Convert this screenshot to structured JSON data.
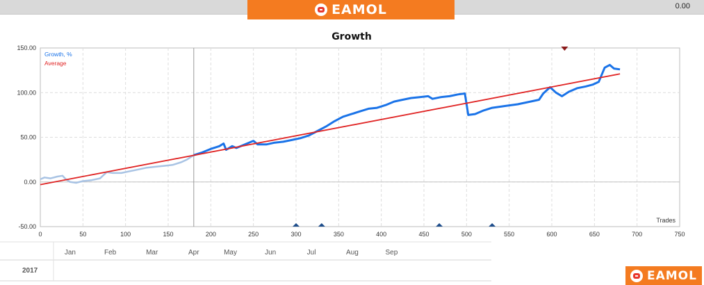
{
  "header": {
    "value": "0.00",
    "brand": "EAMOL"
  },
  "footer": {
    "brand": "EAMOL",
    "year": "2017"
  },
  "chart_data": {
    "type": "line",
    "title": "Growth",
    "xlabel": "Trades",
    "ylabel": "",
    "xlim": [
      0,
      750
    ],
    "ylim": [
      -50,
      150
    ],
    "xticks": [
      0,
      50,
      100,
      150,
      200,
      250,
      300,
      350,
      400,
      450,
      500,
      550,
      600,
      650,
      700,
      750
    ],
    "yticks": [
      -50,
      0,
      50,
      100,
      150
    ],
    "ytick_labels": [
      "-50.00",
      "0.00",
      "50.00",
      "100.00",
      "150.00"
    ],
    "grid": true,
    "legend_position": "top-left",
    "divider_x": 180,
    "months": [
      {
        "label": "Jan",
        "x": 35
      },
      {
        "label": "Feb",
        "x": 82
      },
      {
        "label": "Mar",
        "x": 131
      },
      {
        "label": "Apr",
        "x": 180
      },
      {
        "label": "May",
        "x": 223
      },
      {
        "label": "Jun",
        "x": 270
      },
      {
        "label": "Jul",
        "x": 318
      },
      {
        "label": "Aug",
        "x": 366
      },
      {
        "label": "Sep",
        "x": 412
      }
    ],
    "series": [
      {
        "name": "Growth, %",
        "color": "#1a73e8",
        "faded_before_x": 180,
        "faded_color": "#a8c3e4",
        "points": [
          [
            0,
            3
          ],
          [
            5,
            5
          ],
          [
            12,
            4
          ],
          [
            20,
            6
          ],
          [
            26,
            7
          ],
          [
            30,
            3
          ],
          [
            35,
            0
          ],
          [
            42,
            -1
          ],
          [
            50,
            1
          ],
          [
            60,
            2
          ],
          [
            70,
            4
          ],
          [
            78,
            11
          ],
          [
            85,
            10
          ],
          [
            95,
            10
          ],
          [
            105,
            12
          ],
          [
            115,
            14
          ],
          [
            125,
            16
          ],
          [
            135,
            17
          ],
          [
            145,
            18
          ],
          [
            155,
            19
          ],
          [
            165,
            22
          ],
          [
            172,
            25
          ],
          [
            180,
            30
          ],
          [
            190,
            33
          ],
          [
            200,
            37
          ],
          [
            210,
            40
          ],
          [
            215,
            43
          ],
          [
            218,
            36
          ],
          [
            225,
            40
          ],
          [
            230,
            38
          ],
          [
            240,
            42
          ],
          [
            250,
            46
          ],
          [
            255,
            42
          ],
          [
            265,
            42
          ],
          [
            275,
            44
          ],
          [
            285,
            45
          ],
          [
            295,
            47
          ],
          [
            305,
            49
          ],
          [
            315,
            52
          ],
          [
            325,
            57
          ],
          [
            335,
            62
          ],
          [
            345,
            68
          ],
          [
            355,
            73
          ],
          [
            365,
            76
          ],
          [
            375,
            79
          ],
          [
            385,
            82
          ],
          [
            395,
            83
          ],
          [
            405,
            86
          ],
          [
            415,
            90
          ],
          [
            425,
            92
          ],
          [
            435,
            94
          ],
          [
            445,
            95
          ],
          [
            455,
            96
          ],
          [
            460,
            93
          ],
          [
            470,
            95
          ],
          [
            480,
            96
          ],
          [
            490,
            98
          ],
          [
            498,
            99
          ],
          [
            502,
            75
          ],
          [
            510,
            76
          ],
          [
            520,
            80
          ],
          [
            530,
            83
          ],
          [
            545,
            85
          ],
          [
            560,
            87
          ],
          [
            575,
            90
          ],
          [
            585,
            92
          ],
          [
            590,
            99
          ],
          [
            598,
            106
          ],
          [
            605,
            100
          ],
          [
            612,
            96
          ],
          [
            620,
            101
          ],
          [
            630,
            105
          ],
          [
            640,
            107
          ],
          [
            648,
            109
          ],
          [
            655,
            112
          ],
          [
            662,
            128
          ],
          [
            668,
            131
          ],
          [
            673,
            127
          ],
          [
            680,
            126
          ]
        ]
      },
      {
        "name": "Average",
        "color": "#e02424",
        "points": [
          [
            0,
            -3
          ],
          [
            680,
            121
          ]
        ]
      }
    ],
    "markers_bottom": [
      300,
      330,
      468,
      530
    ],
    "markers_top": [
      615
    ]
  }
}
